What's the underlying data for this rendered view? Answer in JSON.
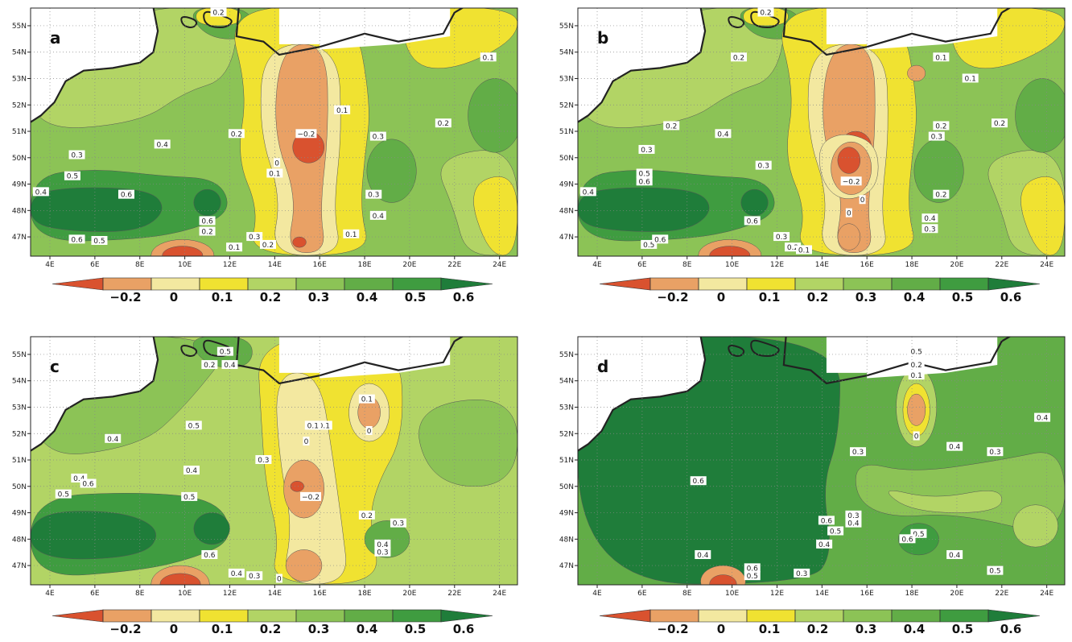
{
  "panels": [
    {
      "label": "a",
      "contour_labels": [
        "0.2",
        "0.1",
        "0.1",
        "0.2",
        "0.2",
        "−0.2",
        "0.3",
        "0.4",
        "0.3",
        "0.5",
        "0.4",
        "0.6",
        "0.3",
        "0.4",
        "0.6",
        "0.2",
        "0.6",
        "0.5",
        "0.3",
        "0.2",
        "0.1",
        "0.1",
        "0",
        "0.1"
      ]
    },
    {
      "label": "b",
      "contour_labels": [
        "0.2",
        "0.1",
        "0.2",
        "0.1",
        "0.2",
        "0.2",
        "0.4",
        "0.2",
        "0.3",
        "0.3",
        "0.5",
        "0.6",
        "0.3",
        "−0.2",
        "0.4",
        "0",
        "0.2",
        "0",
        "0.4",
        "0.3",
        "0.6",
        "0.5",
        "0.6",
        "0.3",
        "0.2",
        "0.1"
      ]
    },
    {
      "label": "c",
      "contour_labels": [
        "0.5",
        "0.2",
        "0.4",
        "0.1",
        "0.1",
        "0",
        "0.1",
        "0.5",
        "0.4",
        "0",
        "0.3",
        "0.4",
        "0.4",
        "0.6",
        "0.5",
        "−0.2",
        "0.5",
        "0.2",
        "0.3",
        "0.4",
        "0.3",
        "0.6",
        "0.4",
        "0.3",
        "0"
      ]
    },
    {
      "label": "d",
      "contour_labels": [
        "0.5",
        "0.2",
        "0.1",
        "0",
        "0.4",
        "0.3",
        "0.4",
        "0.3",
        "0.6",
        "0.6",
        "0.5",
        "0.3",
        "0.4",
        "0.4",
        "0.5",
        "0.6",
        "0.4",
        "0.5",
        "0.4",
        "0.6",
        "0.5",
        "0.3"
      ]
    }
  ],
  "lon_ticks": [
    {
      "value": 4,
      "label": "4E"
    },
    {
      "value": 6,
      "label": "6E"
    },
    {
      "value": 8,
      "label": "8E"
    },
    {
      "value": 10,
      "label": "10E"
    },
    {
      "value": 12,
      "label": "12E"
    },
    {
      "value": 14,
      "label": "14E"
    },
    {
      "value": 16,
      "label": "16E"
    },
    {
      "value": 18,
      "label": "18E"
    },
    {
      "value": 20,
      "label": "20E"
    },
    {
      "value": 22,
      "label": "22E"
    },
    {
      "value": 24,
      "label": "24E"
    }
  ],
  "lat_ticks": [
    {
      "value": 47,
      "label": "47N"
    },
    {
      "value": 48,
      "label": "48N"
    },
    {
      "value": 49,
      "label": "49N"
    },
    {
      "value": 50,
      "label": "50N"
    },
    {
      "value": 51,
      "label": "51N"
    },
    {
      "value": 52,
      "label": "52N"
    },
    {
      "value": 53,
      "label": "53N"
    },
    {
      "value": 54,
      "label": "54N"
    },
    {
      "value": 55,
      "label": "55N"
    }
  ],
  "colorbar": {
    "ticks": [
      {
        "value": -0.2,
        "label": "−0.2"
      },
      0,
      0.1,
      0.2,
      0.3,
      0.4,
      0.5,
      0.6
    ],
    "colors": [
      "#d9522f",
      "#e9a165",
      "#f3e8a0",
      "#f0e231",
      "#b2d465",
      "#8cc356",
      "#62ad47",
      "#3f9c40",
      "#1f7d3a"
    ]
  }
}
